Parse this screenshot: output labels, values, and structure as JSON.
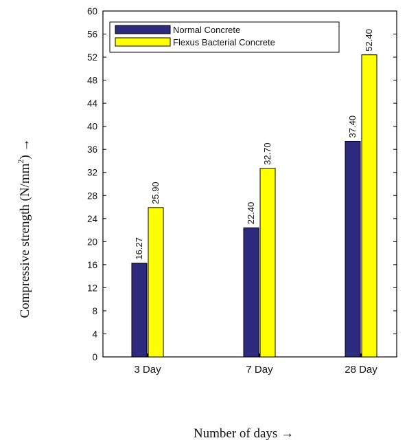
{
  "chart_data": {
    "type": "bar",
    "categories": [
      "3 Day",
      "7 Day",
      "28 Day"
    ],
    "series": [
      {
        "name": "Normal Concrete",
        "values": [
          16.27,
          22.4,
          37.4
        ],
        "labels": [
          "16.27",
          "22.40",
          "37.40"
        ],
        "color": "#2e2a7e"
      },
      {
        "name": "Flexus Bacterial Concrete",
        "values": [
          25.9,
          32.7,
          52.4
        ],
        "labels": [
          "25.90",
          "32.70",
          "52.40"
        ],
        "color": "#ffff00"
      }
    ],
    "y_ticks": [
      0,
      4,
      8,
      12,
      16,
      20,
      24,
      28,
      32,
      36,
      40,
      44,
      48,
      52,
      56,
      60
    ],
    "ylim": [
      0,
      60
    ],
    "ylabel": {
      "main": "Compressive strength (N/mm",
      "sup": "2",
      "tail": ") →"
    },
    "xlabel": "Number of days →",
    "grid": false,
    "legend_position": "top-left"
  }
}
